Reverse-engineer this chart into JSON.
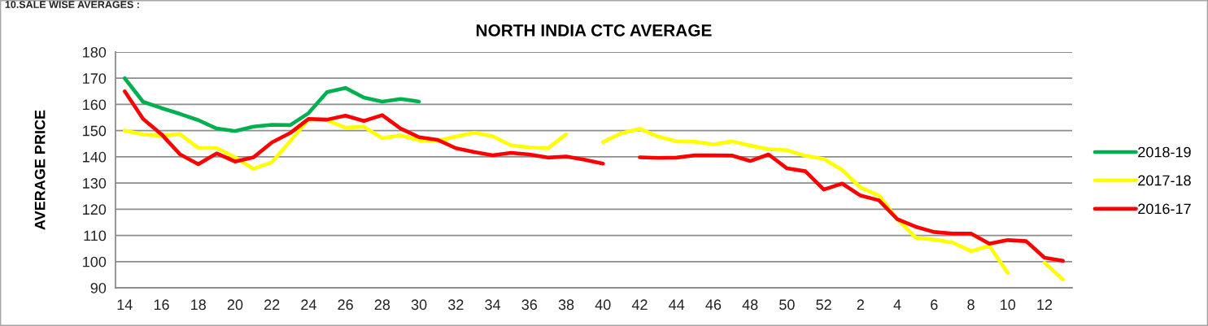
{
  "chart_data": {
    "type": "line",
    "title": "NORTH INDIA CTC AVERAGE",
    "ylabel": "AVERAGE PRICE",
    "annotations": [
      "10.SALE WISE AVERAGES :"
    ],
    "categories": [
      "14",
      null,
      "16",
      null,
      "18",
      null,
      "20",
      null,
      "22",
      null,
      "24",
      null,
      "26",
      null,
      "28",
      null,
      "30",
      null,
      "32",
      null,
      "34",
      null,
      "36",
      null,
      "38",
      null,
      "40",
      null,
      "42",
      null,
      "44",
      null,
      "46",
      null,
      "48",
      null,
      "50",
      null,
      "52",
      null,
      "2",
      null,
      "4",
      null,
      "6",
      null,
      "8",
      null,
      "10",
      null,
      "12",
      null
    ],
    "series": [
      {
        "name": "2018-19",
        "color": "#00b050",
        "values": [
          170,
          161,
          158.6,
          156.4,
          154,
          150.8,
          149.8,
          151.5,
          152.2,
          152.1,
          156.7,
          164.7,
          166.3,
          162.6,
          161.1,
          162.1,
          161.1,
          null,
          null,
          null,
          null,
          null,
          null,
          null,
          null,
          null,
          null,
          null,
          null,
          null,
          null,
          null,
          null,
          null,
          null,
          null,
          null,
          null,
          null,
          null,
          null,
          null,
          null,
          null,
          null,
          null,
          null,
          null,
          null,
          null,
          null,
          null
        ]
      },
      {
        "name": "2017-18",
        "color": "#ffff00",
        "values": [
          150,
          148.6,
          148,
          148.7,
          143.4,
          143.4,
          139.8,
          135.4,
          137.9,
          146,
          154.3,
          154,
          151.1,
          151.5,
          147.1,
          148.2,
          146.3,
          146.1,
          147.7,
          149.2,
          147.9,
          144.4,
          143.6,
          143.2,
          148.6,
          null,
          145.6,
          149,
          150.7,
          147.7,
          145.9,
          145.8,
          144.7,
          145.9,
          144.3,
          142.9,
          142.5,
          140.4,
          139.2,
          135,
          128.3,
          125.2,
          116.2,
          109.1,
          108.4,
          107.3,
          104,
          106,
          95.7,
          null,
          99.6,
          93.2
        ]
      },
      {
        "name": "2016-17",
        "color": "#ff0000",
        "values": [
          165,
          154.5,
          148.6,
          141,
          137.2,
          141.3,
          138.2,
          139.8,
          145.5,
          149.1,
          154.5,
          154.2,
          155.7,
          153.7,
          155.9,
          150.8,
          147.5,
          146.5,
          143.3,
          141.8,
          140.6,
          141.5,
          140.9,
          139.7,
          140.1,
          138.9,
          137.4,
          null,
          139.8,
          139.6,
          139.7,
          140.6,
          140.6,
          140.5,
          138.4,
          140.9,
          135.6,
          134.5,
          127.5,
          129.8,
          125.2,
          123.4,
          116.2,
          113.3,
          111.3,
          110.7,
          110.7,
          106.8,
          108.2,
          107.8,
          101.5,
          100.3
        ]
      }
    ],
    "ylim": [
      90,
      180
    ],
    "yticks": [
      90,
      100,
      110,
      120,
      130,
      140,
      150,
      160,
      170,
      180
    ],
    "grid": "y",
    "legend": "right",
    "line_style": "solid"
  }
}
